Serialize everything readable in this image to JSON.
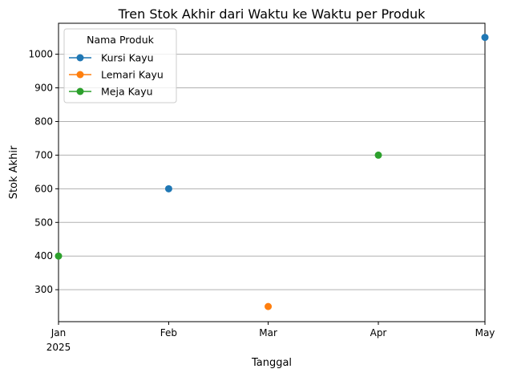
{
  "chart_data": {
    "type": "line",
    "title": "Tren Stok Akhir dari Waktu ke Waktu per Produk",
    "xlabel": "Tanggal",
    "ylabel": "Stok Akhir",
    "x_ticks": [
      "Jan",
      "Feb",
      "Mar",
      "Apr",
      "May"
    ],
    "x_year_label": "2025",
    "xlim": [
      "2025-01-01",
      "2025-05-01"
    ],
    "y_ticks": [
      300,
      400,
      500,
      600,
      700,
      800,
      900,
      1000
    ],
    "ylim": [
      205,
      1092
    ],
    "grid": "y",
    "legend": {
      "title": "Nama Produk",
      "placement": "top-left"
    },
    "series": [
      {
        "name": "Kursi Kayu",
        "color": "#1f77b4",
        "marker": "circle",
        "points": [
          {
            "x": "2025-02-01",
            "y": 600
          },
          {
            "x": "2025-05-01",
            "y": 1050
          }
        ]
      },
      {
        "name": "Lemari Kayu",
        "color": "#ff7f0e",
        "marker": "circle",
        "points": [
          {
            "x": "2025-03-01",
            "y": 250
          }
        ]
      },
      {
        "name": "Meja Kayu",
        "color": "#2ca02c",
        "marker": "circle",
        "points": [
          {
            "x": "2025-01-01",
            "y": 400
          },
          {
            "x": "2025-04-01",
            "y": 700
          }
        ]
      }
    ]
  }
}
